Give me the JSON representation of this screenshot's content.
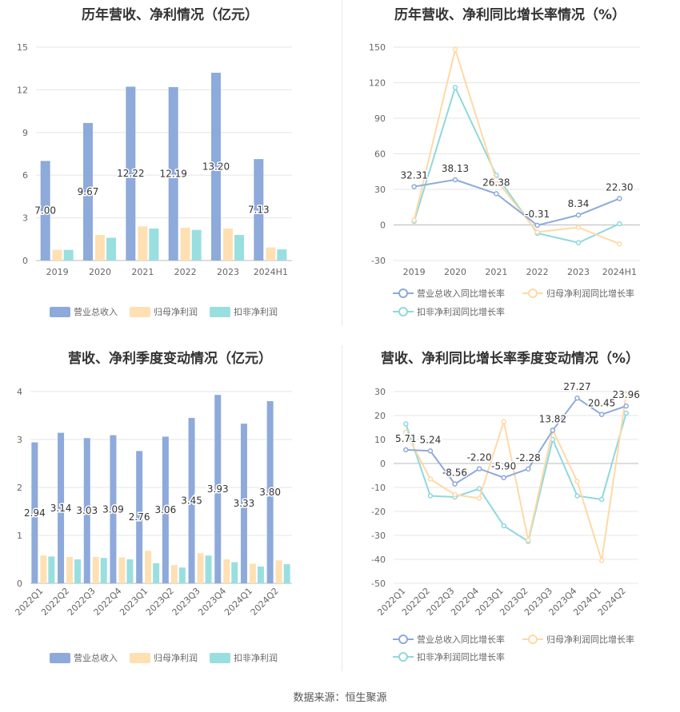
{
  "source": "数据来源：恒生聚源",
  "colors": {
    "revenue": "#8eaadb",
    "parent_profit": "#ffe0b3",
    "deducted_profit": "#99dfe0",
    "revenue_line": "#8eaadb",
    "parent_line": "#ffd9a6",
    "deducted_line": "#8ed9dc"
  },
  "chart_data": [
    {
      "id": "annual_profit",
      "type": "bar",
      "title": "历年营收、净利情况（亿元）",
      "categories": [
        "2019",
        "2020",
        "2021",
        "2022",
        "2023",
        "2024H1"
      ],
      "ylim": [
        0,
        15
      ],
      "yticks": [
        0,
        3,
        6,
        9,
        12,
        15
      ],
      "grid": true,
      "legend": "bottom",
      "series": [
        {
          "name": "营业总收入",
          "values": [
            7.0,
            9.67,
            12.22,
            12.19,
            13.2,
            7.13
          ],
          "labels": [
            "7.00",
            "9.67",
            "12.22",
            "12.19",
            "13.20",
            "7.13"
          ]
        },
        {
          "name": "归母净利润",
          "values": [
            0.75,
            1.8,
            2.4,
            2.3,
            2.25,
            0.92
          ]
        },
        {
          "name": "扣非净利润",
          "values": [
            0.75,
            1.6,
            2.25,
            2.15,
            1.8,
            0.78
          ]
        }
      ]
    },
    {
      "id": "annual_growth",
      "type": "line",
      "title": "历年营收、净利同比增长率情况（%）",
      "categories": [
        "2019",
        "2020",
        "2021",
        "2022",
        "2023",
        "2024H1"
      ],
      "ylim": [
        -30,
        150
      ],
      "yticks": [
        -30,
        0,
        30,
        60,
        90,
        120,
        150
      ],
      "grid": true,
      "legend": "bottom",
      "series": [
        {
          "name": "营业总收入同比增长率",
          "values": [
            32.31,
            38.13,
            26.38,
            -0.31,
            8.34,
            22.3
          ],
          "labels": [
            "32.31",
            "38.13",
            "26.38",
            "-0.31",
            "8.34",
            "22.30"
          ]
        },
        {
          "name": "归母净利润同比增长率",
          "values": [
            4,
            148,
            38,
            -6,
            -2,
            -16
          ]
        },
        {
          "name": "扣非净利润同比增长率",
          "values": [
            3,
            116,
            42,
            -7,
            -15,
            1
          ]
        }
      ]
    },
    {
      "id": "quarterly_profit",
      "type": "bar",
      "title": "营收、净利季度变动情况（亿元）",
      "categories": [
        "2022Q1",
        "2022Q2",
        "2022Q3",
        "2022Q4",
        "2023Q1",
        "2023Q2",
        "2023Q3",
        "2023Q4",
        "2024Q1",
        "2024Q2"
      ],
      "ylim": [
        0,
        4
      ],
      "yticks": [
        0,
        1,
        2,
        3,
        4
      ],
      "grid": true,
      "legend": "bottom",
      "series": [
        {
          "name": "营业总收入",
          "values": [
            2.94,
            3.14,
            3.03,
            3.09,
            2.76,
            3.06,
            3.45,
            3.93,
            3.33,
            3.8
          ],
          "labels": [
            "2.94",
            "3.14",
            "3.03",
            "3.09",
            "2.76",
            "3.06",
            "3.45",
            "3.93",
            "3.33",
            "3.80"
          ]
        },
        {
          "name": "归母净利润",
          "values": [
            0.58,
            0.55,
            0.55,
            0.54,
            0.68,
            0.38,
            0.63,
            0.5,
            0.41,
            0.48
          ]
        },
        {
          "name": "扣非净利润",
          "values": [
            0.56,
            0.5,
            0.53,
            0.5,
            0.42,
            0.33,
            0.58,
            0.44,
            0.35,
            0.4
          ]
        }
      ]
    },
    {
      "id": "quarterly_growth",
      "type": "line",
      "title": "营收、净利同比增长率季度变动情况（%）",
      "categories": [
        "2022Q1",
        "2022Q2",
        "2022Q3",
        "2022Q4",
        "2023Q1",
        "2023Q2",
        "2023Q3",
        "2023Q4",
        "2024Q1",
        "2024Q2"
      ],
      "ylim": [
        -50,
        30
      ],
      "yticks": [
        -50,
        -40,
        -30,
        -20,
        -10,
        0,
        10,
        20,
        30
      ],
      "grid": true,
      "legend": "bottom",
      "series": [
        {
          "name": "营业总收入同比增长率",
          "values": [
            5.71,
            5.24,
            -8.56,
            -2.2,
            -5.9,
            -2.28,
            13.82,
            27.27,
            20.45,
            23.96
          ],
          "labels": [
            "5.71",
            "5.24",
            "-8.56",
            "-2.20",
            "-5.90",
            "-2.28",
            "13.82",
            "27.27",
            "20.45",
            "23.96"
          ]
        },
        {
          "name": "归母净利润同比增长率",
          "values": [
            13,
            -6.5,
            -13,
            -14.5,
            17.5,
            -32,
            14,
            -7.5,
            -40.5,
            29
          ]
        },
        {
          "name": "扣非净利润同比增长率",
          "values": [
            16.5,
            -13.5,
            -14,
            -10.5,
            -26,
            -32.5,
            10,
            -13.5,
            -15,
            21
          ]
        }
      ]
    }
  ]
}
